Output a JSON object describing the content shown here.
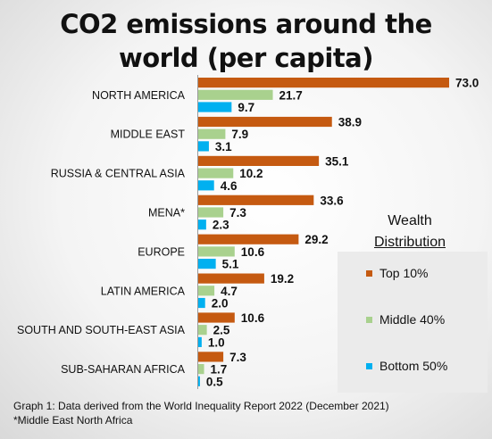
{
  "title_lines": [
    "CO2 emissions around the",
    "world (per capita)"
  ],
  "colors": {
    "top": "#c55a11",
    "middle": "#a9d18e",
    "bottom": "#00b0f0"
  },
  "legend": {
    "title_line1": "Wealth",
    "title_line2": "Distribution",
    "items": [
      "Top 10%",
      "Middle 40%",
      "Bottom 50%"
    ]
  },
  "footnote": {
    "line1": "Graph 1: Data derived from the World Inequality Report 2022 (December 2021)",
    "line2": "*Middle East North Africa"
  },
  "chart_data": {
    "type": "bar",
    "orientation": "horizontal",
    "title": "CO2 emissions around the world (per capita)",
    "categories": [
      "NORTH AMERICA",
      "MIDDLE EAST",
      "RUSSIA & CENTRAL ASIA",
      "MENA*",
      "EUROPE",
      "LATIN AMERICA",
      "SOUTH AND SOUTH-EAST ASIA",
      "SUB-SAHARAN AFRICA"
    ],
    "series": [
      {
        "name": "Top 10%",
        "values": [
          73.0,
          38.9,
          35.1,
          33.6,
          29.2,
          19.2,
          10.6,
          7.3
        ]
      },
      {
        "name": "Middle 40%",
        "values": [
          21.7,
          7.9,
          10.2,
          7.3,
          10.6,
          4.7,
          2.5,
          1.7
        ]
      },
      {
        "name": "Bottom 50%",
        "values": [
          9.7,
          3.1,
          4.6,
          2.3,
          5.1,
          2.0,
          1.0,
          0.5
        ]
      }
    ],
    "value_labels": [
      [
        "73.0",
        "38.9",
        "35.1",
        "33.6",
        "29.2",
        "19.2",
        "10.6",
        "7.3"
      ],
      [
        "21.7",
        "7.9",
        "10.2",
        "7.3",
        "10.6",
        "4.7",
        "2.5",
        "1.7"
      ],
      [
        "9.7",
        "3.1",
        "4.6",
        "2.3",
        "5.1",
        "2.0",
        "1.0",
        "0.5"
      ]
    ],
    "xlim": [
      0,
      73
    ],
    "grid": false,
    "legend_position": "right"
  }
}
